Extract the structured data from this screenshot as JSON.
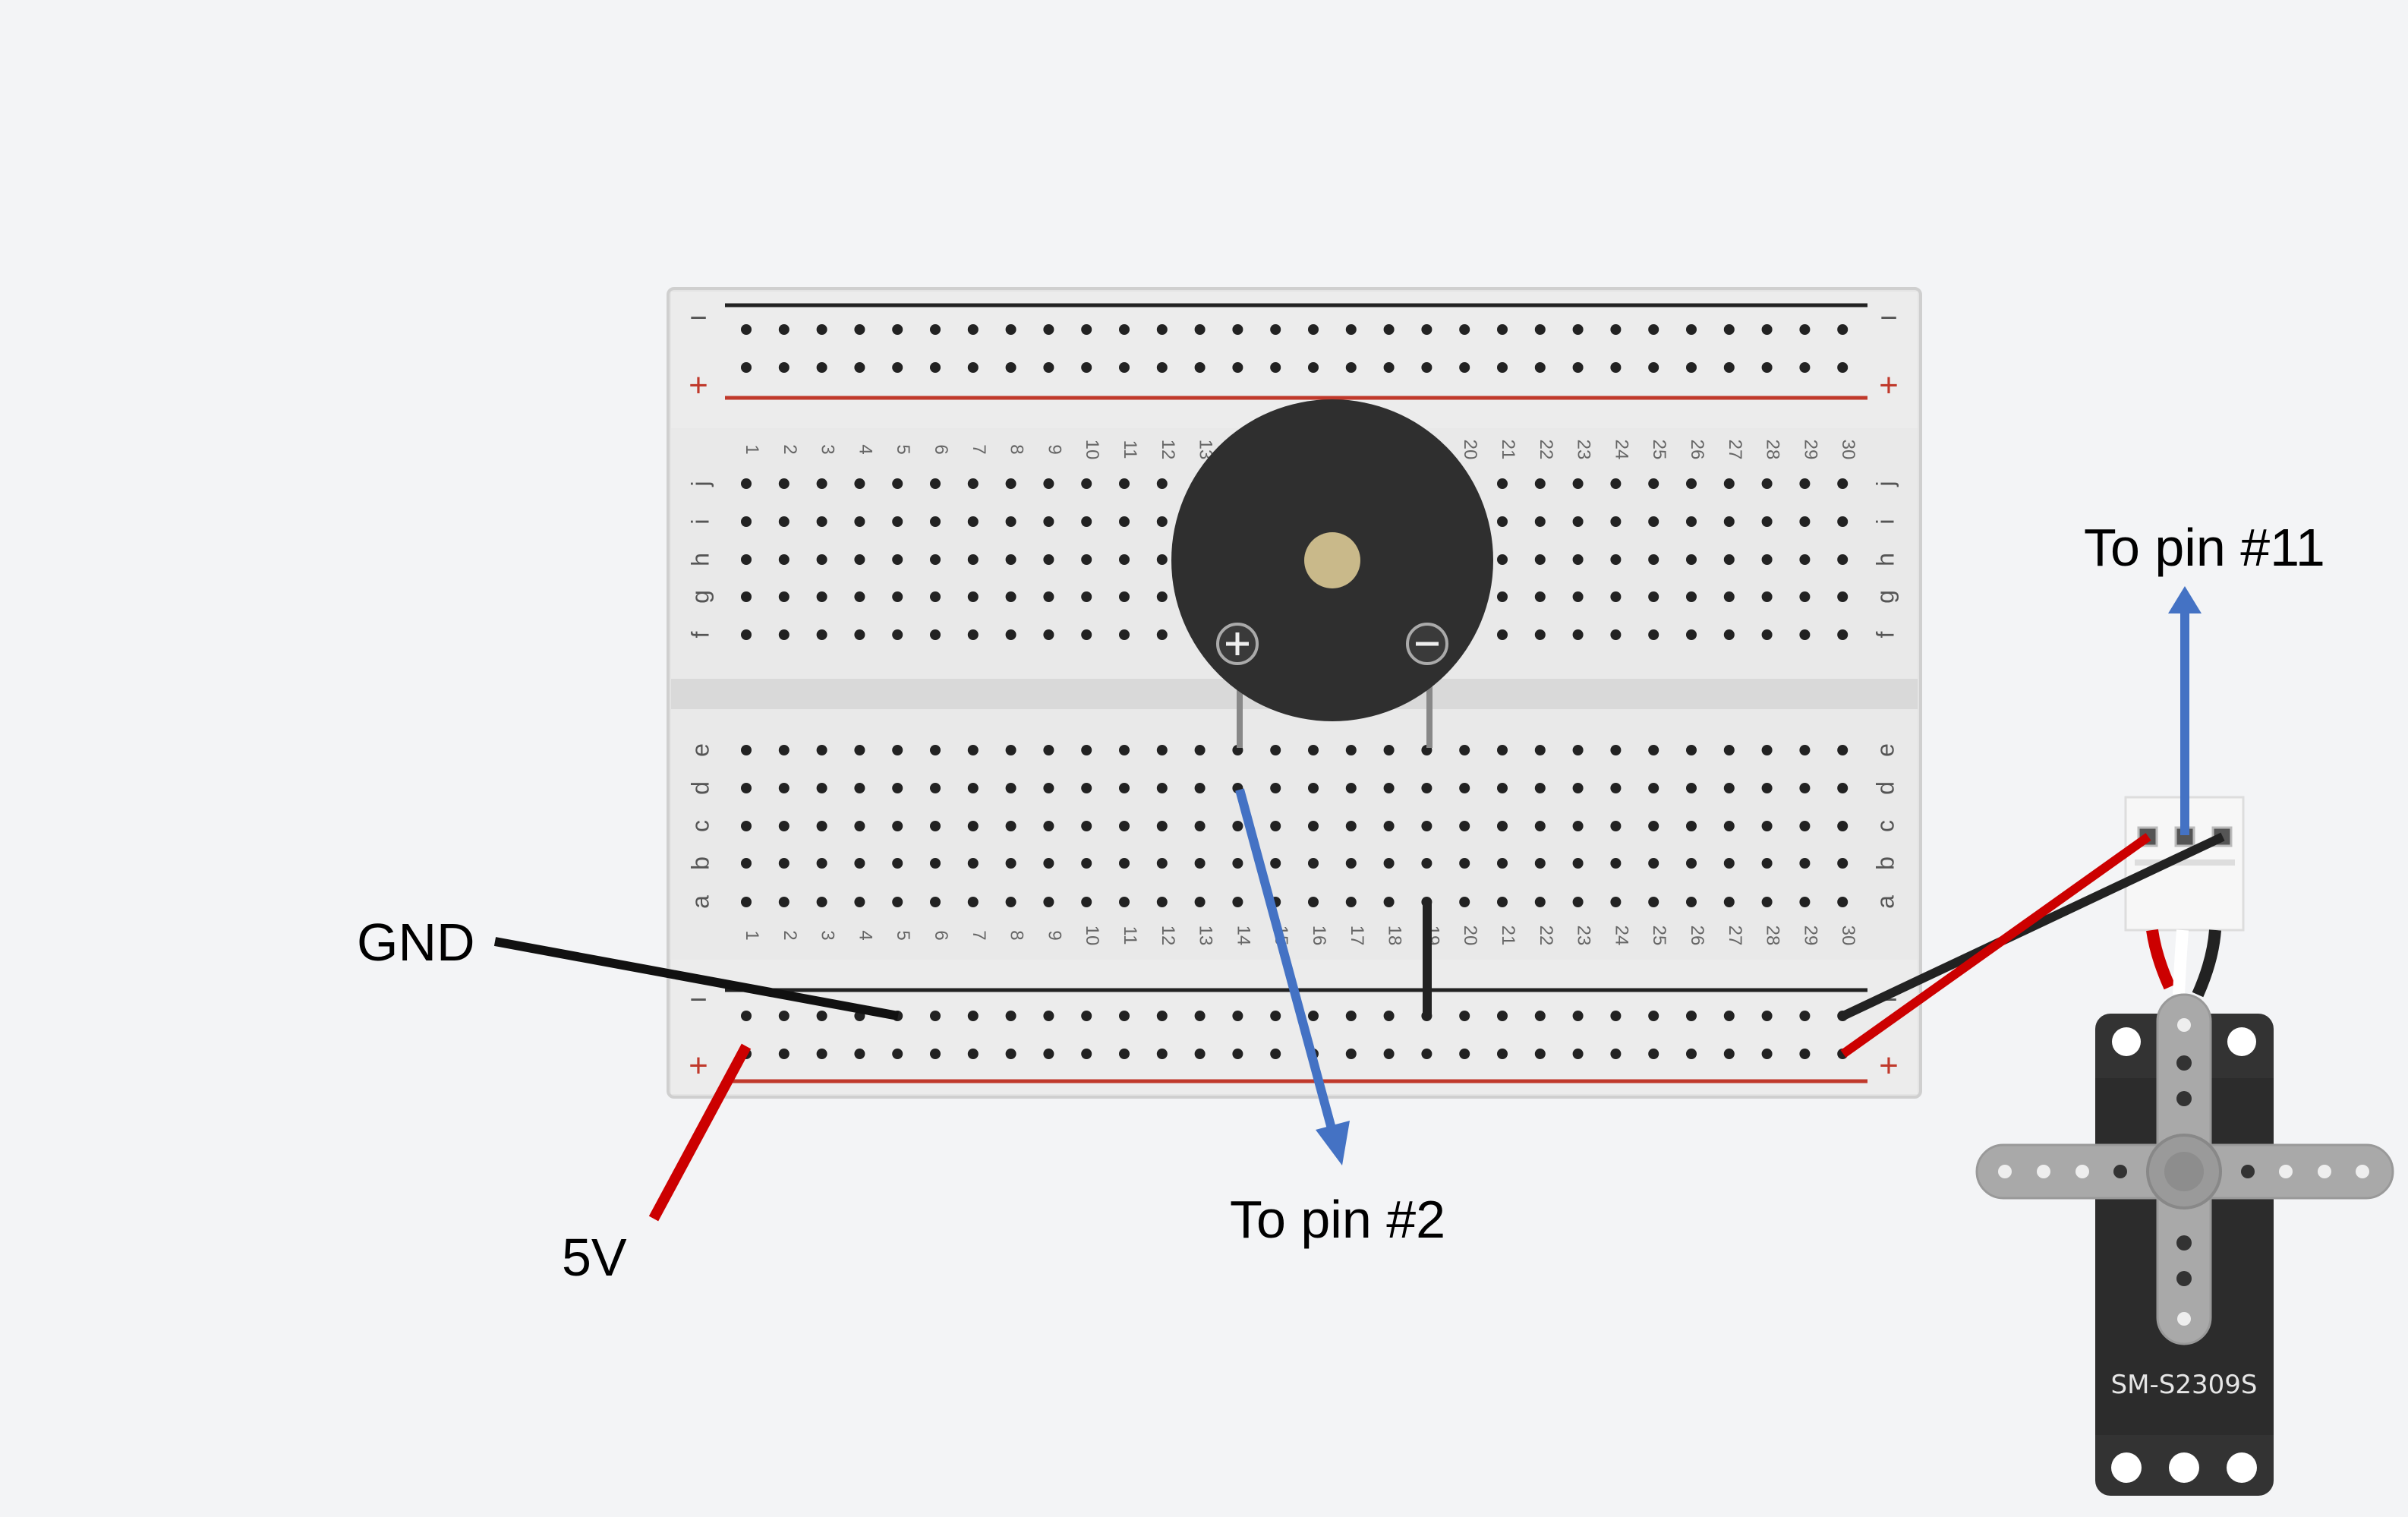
{
  "labels": {
    "gnd": "GND",
    "five_v": "5V",
    "pin2": "To pin #2",
    "pin11": "To pin #11"
  },
  "breadcrumb_board": {
    "rail_minus": "−",
    "rail_plus": "+",
    "columns": 30,
    "top_rows": [
      "j",
      "i",
      "h",
      "g",
      "f"
    ],
    "bottom_rows": [
      "e",
      "d",
      "c",
      "b",
      "a"
    ]
  },
  "servo": {
    "model": "SM-S2309S"
  },
  "colors": {
    "wire_black": "#111111",
    "wire_red": "#cc0000",
    "arrow_blue": "#4472c4",
    "rail_red": "#c0392b",
    "board": "#e2e2e2",
    "buzzer": "#2f2f2f",
    "servo_body": "#333333",
    "servo_horn": "#a9a9a9"
  },
  "icons": {
    "buzzer_plus": "plus-icon",
    "buzzer_minus": "minus-icon"
  }
}
